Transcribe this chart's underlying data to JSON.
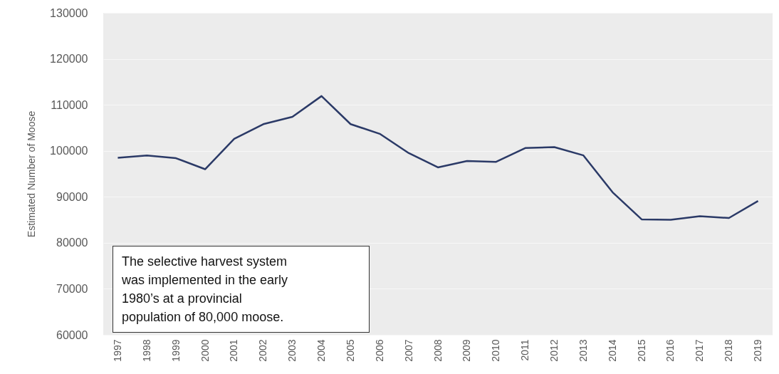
{
  "chart_data": {
    "type": "line",
    "ylabel": "Estimated Number of Moose",
    "categories": [
      "1997",
      "1998",
      "1999",
      "2000",
      "2001",
      "2002",
      "2003",
      "2004",
      "2005",
      "2006",
      "2007",
      "2008",
      "2009",
      "2010",
      "2011",
      "2012",
      "2013",
      "2014",
      "2015",
      "2016",
      "2017",
      "2018",
      "2019"
    ],
    "series": [
      {
        "color": "#2b3a67",
        "values": [
          98500,
          99000,
          98400,
          96000,
          102600,
          105800,
          107400,
          111900,
          105800,
          103700,
          99500,
          96400,
          97800,
          97600,
          100600,
          100800,
          99000,
          91000,
          85100,
          85000,
          85800,
          85400,
          89100
        ]
      }
    ],
    "ylim": [
      60000,
      130000
    ],
    "yticks": [
      60000,
      70000,
      80000,
      90000,
      100000,
      110000,
      120000,
      130000
    ],
    "grid": "y",
    "marker": "none",
    "line_style": "solid",
    "annotations": [
      "The selective harvest system was implemented in the early 1980’s at a provincial population of 80,000 moose."
    ]
  }
}
